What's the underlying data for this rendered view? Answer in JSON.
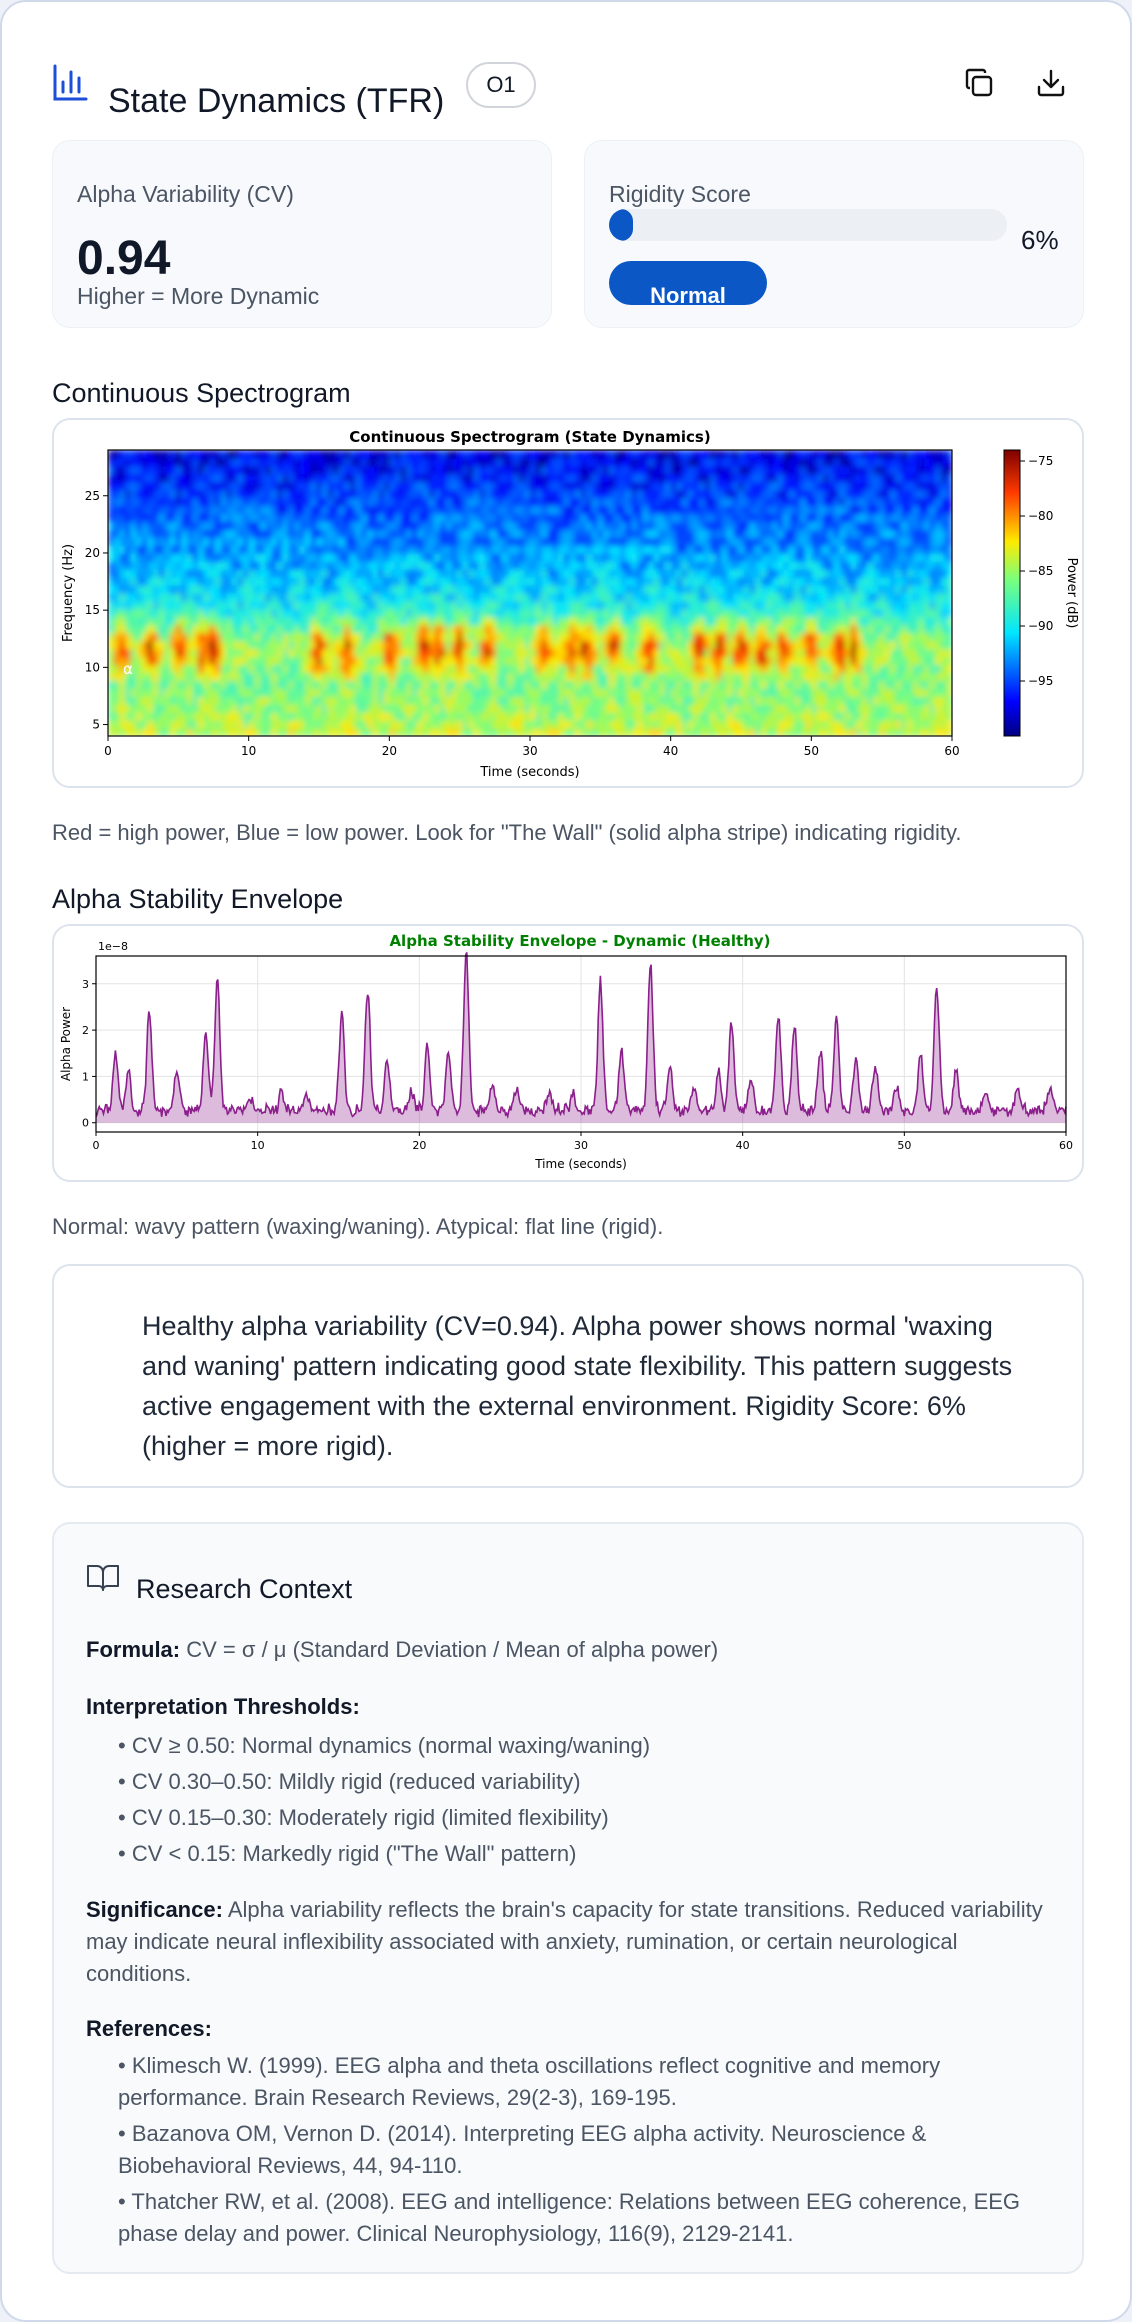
{
  "header": {
    "title": "State Dynamics (TFR)",
    "channel": "O1",
    "icons": [
      "bar-chart-icon",
      "copy-icon",
      "download-icon"
    ]
  },
  "alpha_card": {
    "label": "Alpha Variability (CV)",
    "value": "0.94",
    "sub": "Higher = More Dynamic"
  },
  "rigidity_card": {
    "label": "Rigidity Score",
    "percent_text": "6%",
    "fill_fraction": 0.06,
    "status": "Normal",
    "accent": "#0b57c5"
  },
  "spectrogram": {
    "section_title": "Continuous Spectrogram",
    "caption": "Red = high power, Blue = low power. Look for \"The Wall\" (solid alpha stripe) indicating rigidity.",
    "chart_data": {
      "type": "heatmap",
      "title": "Continuous Spectrogram (State Dynamics)",
      "xlabel": "Time (seconds)",
      "ylabel": "Frequency (Hz)",
      "colorbar_label": "Power (dB)",
      "xlim": [
        0,
        60
      ],
      "ylim": [
        4,
        29
      ],
      "xticks": [
        "0",
        "10",
        "20",
        "30",
        "40",
        "50",
        "60"
      ],
      "yticks": [
        "5",
        "10",
        "15",
        "20",
        "25"
      ],
      "cbar_ticks": [
        "−75",
        "−80",
        "−85",
        "−90",
        "−95"
      ],
      "cbar_range": [
        -100,
        -74
      ],
      "annotation": "α",
      "alpha_band_hz": [
        9,
        14
      ],
      "alpha_bursts_sec": [
        1,
        3,
        5,
        6.8,
        7.5,
        15,
        17,
        20,
        22.5,
        23.5,
        25,
        27,
        31,
        33,
        34,
        36,
        38.5,
        42,
        43.5,
        45,
        46.5,
        48,
        50,
        52,
        53
      ]
    }
  },
  "envelope": {
    "section_title": "Alpha Stability Envelope",
    "caption": "Normal: wavy pattern (waxing/waning). Atypical: flat line (rigid).",
    "chart_data": {
      "type": "area",
      "title": "Alpha Stability Envelope - Dynamic (Healthy)",
      "title_color": "#008000",
      "xlabel": "Time (seconds)",
      "ylabel": "Alpha Power",
      "offset_label": "1e−8",
      "xlim": [
        0,
        60
      ],
      "ylim": [
        -0.2,
        3.6
      ],
      "xticks": [
        "0",
        "10",
        "20",
        "30",
        "40",
        "50",
        "60"
      ],
      "yticks": [
        "0",
        "1",
        "2",
        "3"
      ],
      "grid": true,
      "color": "#8b1f8b",
      "peaks": [
        {
          "x": 1.2,
          "y": 1.2
        },
        {
          "x": 2.0,
          "y": 0.9
        },
        {
          "x": 3.3,
          "y": 2.1
        },
        {
          "x": 5.0,
          "y": 0.9
        },
        {
          "x": 6.8,
          "y": 1.7
        },
        {
          "x": 7.5,
          "y": 2.8
        },
        {
          "x": 9.5,
          "y": 0.3
        },
        {
          "x": 11.5,
          "y": 0.4
        },
        {
          "x": 13.0,
          "y": 0.3
        },
        {
          "x": 15.2,
          "y": 2.1
        },
        {
          "x": 16.8,
          "y": 2.6
        },
        {
          "x": 18.0,
          "y": 1.1
        },
        {
          "x": 19.5,
          "y": 0.4
        },
        {
          "x": 20.5,
          "y": 1.4
        },
        {
          "x": 21.8,
          "y": 1.3
        },
        {
          "x": 22.9,
          "y": 3.4
        },
        {
          "x": 24.5,
          "y": 0.6
        },
        {
          "x": 26.0,
          "y": 0.5
        },
        {
          "x": 28.0,
          "y": 0.4
        },
        {
          "x": 29.5,
          "y": 0.3
        },
        {
          "x": 31.2,
          "y": 2.8
        },
        {
          "x": 32.5,
          "y": 1.3
        },
        {
          "x": 34.3,
          "y": 3.2
        },
        {
          "x": 35.5,
          "y": 1.0
        },
        {
          "x": 37.0,
          "y": 0.5
        },
        {
          "x": 38.5,
          "y": 0.8
        },
        {
          "x": 39.3,
          "y": 1.9
        },
        {
          "x": 40.5,
          "y": 0.7
        },
        {
          "x": 42.2,
          "y": 2.1
        },
        {
          "x": 43.2,
          "y": 1.8
        },
        {
          "x": 44.8,
          "y": 1.3
        },
        {
          "x": 45.8,
          "y": 2.0
        },
        {
          "x": 47.0,
          "y": 1.2
        },
        {
          "x": 48.2,
          "y": 1.0
        },
        {
          "x": 49.5,
          "y": 0.5
        },
        {
          "x": 51.0,
          "y": 1.2
        },
        {
          "x": 52.0,
          "y": 2.7
        },
        {
          "x": 53.2,
          "y": 0.9
        },
        {
          "x": 55.0,
          "y": 0.4
        },
        {
          "x": 57.0,
          "y": 0.5
        },
        {
          "x": 59.0,
          "y": 0.5
        }
      ]
    }
  },
  "summary": {
    "text": "Healthy alpha variability (CV=0.94). Alpha power shows normal 'waxing and waning' pattern indicating good state flexibility. This pattern suggests active engagement with the external environment. Rigidity Score: 6% (higher = more rigid)."
  },
  "research": {
    "title": "Research Context",
    "formula_label": "Formula:",
    "formula": "CV = σ / μ (Standard Deviation / Mean of alpha power)",
    "thresholds_title": "Interpretation Thresholds:",
    "thresholds": [
      "• CV ≥ 0.50: Normal dynamics (normal waxing/waning)",
      "• CV 0.30–0.50: Mildly rigid (reduced variability)",
      "• CV 0.15–0.30: Moderately rigid (limited flexibility)",
      "• CV < 0.15: Markedly rigid (\"The Wall\" pattern)"
    ],
    "significance_label": "Significance:",
    "significance": "Alpha variability reflects the brain's capacity for state transitions. Reduced variability may indicate neural inflexibility associated with anxiety, rumination, or certain neurological conditions.",
    "references_title": "References:",
    "references": [
      "• Klimesch W. (1999). EEG alpha and theta oscillations reflect cognitive and memory performance. Brain Research Reviews, 29(2-3), 169-195.",
      "• Bazanova OM, Vernon D. (2014). Interpreting EEG alpha activity. Neuroscience & Biobehavioral Reviews, 44, 94-110.",
      "• Thatcher RW, et al. (2008). EEG and intelligence: Relations between EEG coherence, EEG phase delay and power. Clinical Neurophysiology, 116(9), 2129-2141."
    ]
  }
}
